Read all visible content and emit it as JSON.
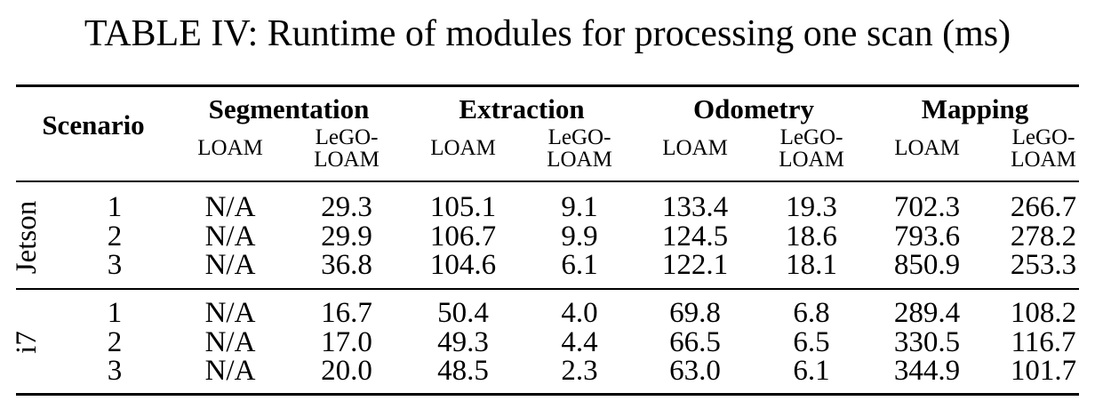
{
  "table": {
    "caption": "TABLE IV: Runtime of modules for processing one scan (ms)",
    "scenario_header": "Scenario",
    "groups": [
      "Segmentation",
      "Extraction",
      "Odometry",
      "Mapping"
    ],
    "subheaders": {
      "loam": "LOAM",
      "lego_line1": "LeGO-",
      "lego_line2": "LOAM"
    },
    "platforms": [
      {
        "name": "Jetson",
        "rows": [
          {
            "scenario": "1",
            "values": [
              "N/A",
              "29.3",
              "105.1",
              "9.1",
              "133.4",
              "19.3",
              "702.3",
              "266.7"
            ]
          },
          {
            "scenario": "2",
            "values": [
              "N/A",
              "29.9",
              "106.7",
              "9.9",
              "124.5",
              "18.6",
              "793.6",
              "278.2"
            ]
          },
          {
            "scenario": "3",
            "values": [
              "N/A",
              "36.8",
              "104.6",
              "6.1",
              "122.1",
              "18.1",
              "850.9",
              "253.3"
            ]
          }
        ]
      },
      {
        "name": "i7",
        "rows": [
          {
            "scenario": "1",
            "values": [
              "N/A",
              "16.7",
              "50.4",
              "4.0",
              "69.8",
              "6.8",
              "289.4",
              "108.2"
            ]
          },
          {
            "scenario": "2",
            "values": [
              "N/A",
              "17.0",
              "49.3",
              "4.4",
              "66.5",
              "6.5",
              "330.5",
              "116.7"
            ]
          },
          {
            "scenario": "3",
            "values": [
              "N/A",
              "20.0",
              "48.5",
              "2.3",
              "63.0",
              "6.1",
              "344.9",
              "101.7"
            ]
          }
        ]
      }
    ]
  }
}
